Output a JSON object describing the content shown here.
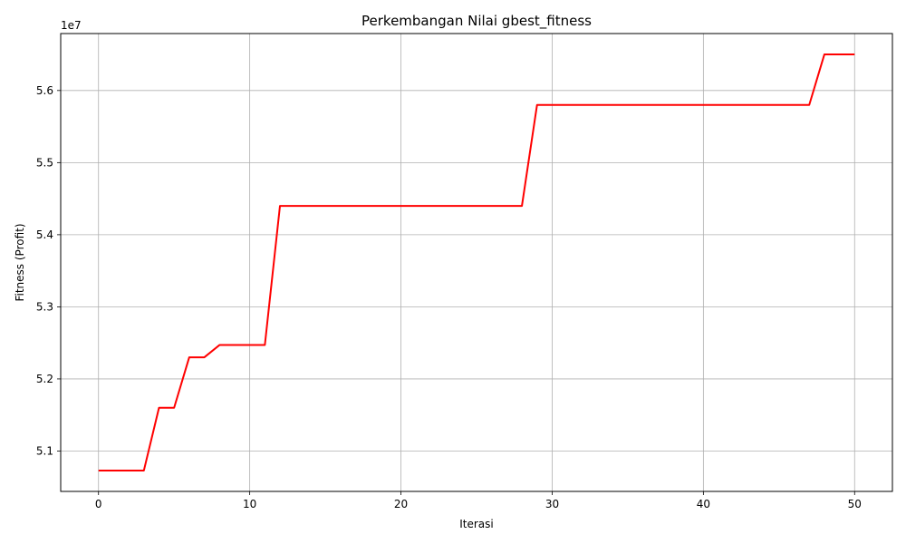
{
  "chart_data": {
    "type": "line",
    "title": "Perkembangan Nilai gbest_fitness",
    "xlabel": "Iterasi",
    "ylabel": "Fitness (Profit)",
    "offset_label": "1e7",
    "xlim": [
      -2.5,
      52.5
    ],
    "ylim": [
      50440000,
      56790000
    ],
    "x_ticks": [
      0,
      10,
      20,
      30,
      40,
      50
    ],
    "x_tick_labels": [
      "0",
      "10",
      "20",
      "30",
      "40",
      "50"
    ],
    "y_ticks": [
      51000000,
      52000000,
      53000000,
      54000000,
      55000000,
      56000000
    ],
    "y_tick_labels": [
      "5.1",
      "5.2",
      "5.3",
      "5.4",
      "5.5",
      "5.6"
    ],
    "grid": true,
    "line_color": "#ff0000",
    "series": [
      {
        "name": "",
        "x": [
          0,
          1,
          2,
          3,
          4,
          5,
          6,
          7,
          8,
          9,
          10,
          11,
          12,
          13,
          14,
          15,
          16,
          17,
          18,
          19,
          20,
          21,
          22,
          23,
          24,
          25,
          26,
          27,
          28,
          29,
          30,
          31,
          32,
          33,
          34,
          35,
          36,
          37,
          38,
          39,
          40,
          41,
          42,
          43,
          44,
          45,
          46,
          47,
          48,
          49,
          50
        ],
        "y": [
          50730000,
          50730000,
          50730000,
          50730000,
          51600000,
          51600000,
          52300000,
          52300000,
          52470000,
          52470000,
          52470000,
          52470000,
          54400000,
          54400000,
          54400000,
          54400000,
          54400000,
          54400000,
          54400000,
          54400000,
          54400000,
          54400000,
          54400000,
          54400000,
          54400000,
          54400000,
          54400000,
          54400000,
          54400000,
          55800000,
          55800000,
          55800000,
          55800000,
          55800000,
          55800000,
          55800000,
          55800000,
          55800000,
          55800000,
          55800000,
          55800000,
          55800000,
          55800000,
          55800000,
          55800000,
          55800000,
          55800000,
          55800000,
          56500000,
          56500000,
          56500000
        ]
      }
    ]
  }
}
